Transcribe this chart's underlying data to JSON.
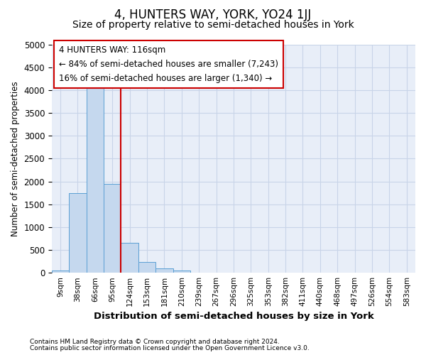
{
  "title": "4, HUNTERS WAY, YORK, YO24 1JJ",
  "subtitle": "Size of property relative to semi-detached houses in York",
  "xlabel": "Distribution of semi-detached houses by size in York",
  "ylabel": "Number of semi-detached properties",
  "footnote1": "Contains HM Land Registry data © Crown copyright and database right 2024.",
  "footnote2": "Contains public sector information licensed under the Open Government Licence v3.0.",
  "annotation_line1": "4 HUNTERS WAY: 116sqm",
  "annotation_line2": "← 84% of semi-detached houses are smaller (7,243)",
  "annotation_line3": "16% of semi-detached houses are larger (1,340) →",
  "bar_labels": [
    "9sqm",
    "38sqm",
    "66sqm",
    "95sqm",
    "124sqm",
    "153sqm",
    "181sqm",
    "210sqm",
    "239sqm",
    "267sqm",
    "296sqm",
    "325sqm",
    "353sqm",
    "382sqm",
    "411sqm",
    "440sqm",
    "468sqm",
    "497sqm",
    "526sqm",
    "554sqm",
    "583sqm"
  ],
  "bar_values": [
    50,
    1750,
    4050,
    1950,
    650,
    240,
    90,
    50,
    0,
    0,
    0,
    0,
    0,
    0,
    0,
    0,
    0,
    0,
    0,
    0,
    0
  ],
  "bar_color": "#c5d8ee",
  "bar_edge_color": "#5a9fd4",
  "grid_color": "#c8d4e8",
  "background_color": "#e8eef8",
  "vline_color": "#cc0000",
  "vline_pos": 3.5,
  "ylim": [
    0,
    5000
  ],
  "yticks": [
    0,
    500,
    1000,
    1500,
    2000,
    2500,
    3000,
    3500,
    4000,
    4500,
    5000
  ],
  "title_fontsize": 12,
  "subtitle_fontsize": 10,
  "annotation_box_color": "#cc0000",
  "annotation_bg": "#ffffff"
}
